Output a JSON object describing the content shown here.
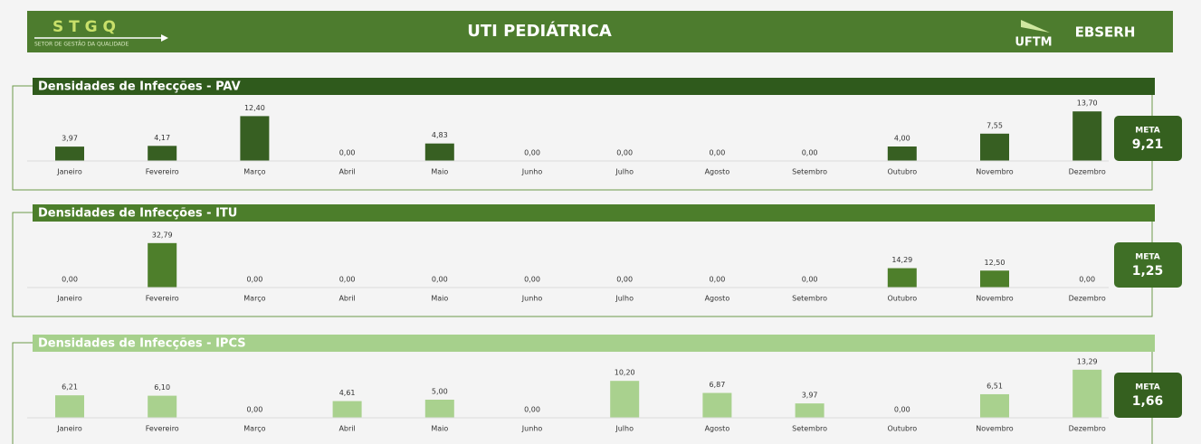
{
  "header": {
    "logo": "S T G Q",
    "logo_subtitle": "SETOR DE GESTÃO DA QUALIDADE",
    "title": "UTI PEDIÁTRICA",
    "logo_right_1": "UFTM",
    "logo_right_2": "EBSERH"
  },
  "chart_data": [
    {
      "type": "bar",
      "title": "Densidades de Infecções - PAV",
      "title_color": "#2f5a1c",
      "color": "#375f22",
      "categories": [
        "Janeiro",
        "Fevereiro",
        "Março",
        "Abril",
        "Maio",
        "Junho",
        "Julho",
        "Agosto",
        "Setembro",
        "Outubro",
        "Novembro",
        "Dezembro"
      ],
      "values": [
        3.97,
        4.17,
        12.4,
        0,
        4.83,
        0,
        0,
        0,
        0,
        4.0,
        7.55,
        13.7
      ],
      "value_labels": [
        "3,97",
        "4,17",
        "12,40",
        "0,00",
        "4,83",
        "0,00",
        "0,00",
        "0,00",
        "0,00",
        "4,00",
        "7,55",
        "13,70"
      ],
      "ylim": [
        0,
        15
      ],
      "meta_label": "META",
      "meta_value": "9,21"
    },
    {
      "type": "bar",
      "title": "Densidades de Infecções - ITU",
      "title_color": "#4c7e2b",
      "color": "#4e7f2b",
      "categories": [
        "Janeiro",
        "Fevereiro",
        "Março",
        "Abril",
        "Maio",
        "Junho",
        "Julho",
        "Agosto",
        "Setembro",
        "Outubro",
        "Novembro",
        "Dezembro"
      ],
      "values": [
        0,
        32.79,
        0,
        0,
        0,
        0,
        0,
        0,
        0,
        14.29,
        12.5,
        0
      ],
      "value_labels": [
        "0,00",
        "32,79",
        "0,00",
        "0,00",
        "0,00",
        "0,00",
        "0,00",
        "0,00",
        "0,00",
        "14,29",
        "12,50",
        "0,00"
      ],
      "ylim": [
        0,
        40
      ],
      "meta_label": "META",
      "meta_value": "1,25"
    },
    {
      "type": "bar",
      "title": "Densidades de Infecções - IPCS",
      "title_color": "#a6d08c",
      "color": "#a9d18e",
      "categories": [
        "Janeiro",
        "Fevereiro",
        "Março",
        "Abril",
        "Maio",
        "Junho",
        "Julho",
        "Agosto",
        "Setembro",
        "Outubro",
        "Novembro",
        "Dezembro"
      ],
      "values": [
        6.21,
        6.1,
        0,
        4.61,
        5.0,
        0,
        10.2,
        6.87,
        3.97,
        0,
        6.51,
        13.29
      ],
      "value_labels": [
        "6,21",
        "6,10",
        "0,00",
        "4,61",
        "5,00",
        "0,00",
        "10,20",
        "6,87",
        "3,97",
        "0,00",
        "6,51",
        "13,29"
      ],
      "ylim": [
        0,
        15
      ],
      "meta_label": "META",
      "meta_value": "1,66"
    }
  ]
}
